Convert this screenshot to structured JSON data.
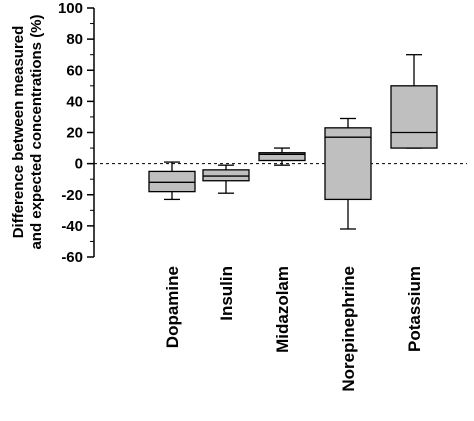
{
  "chart_data": {
    "type": "box",
    "ylabel_line1": "Difference between measured",
    "ylabel_line2": "and expected concentrations (%)",
    "xlabel": "",
    "title": "",
    "ylim": [
      -60,
      100
    ],
    "yticks": [
      100,
      80,
      60,
      40,
      20,
      0,
      -20,
      -40,
      -60
    ],
    "ytick_labels": [
      "100",
      "80",
      "60",
      "40",
      "20",
      "0",
      "-20",
      "-40",
      "-60"
    ],
    "reference_line": {
      "y": 0,
      "style": "dashed"
    },
    "categories": [
      "Dopamine",
      "Insulin",
      "Midazolam",
      "Norepinephrine",
      "Potassium"
    ],
    "boxes": [
      {
        "category": "Dopamine",
        "whisker_low": -23,
        "q1": -18,
        "median": -12,
        "q3": -5,
        "whisker_high": 1
      },
      {
        "category": "Insulin",
        "whisker_low": -19,
        "q1": -11,
        "median": -8,
        "q3": -4,
        "whisker_high": -1
      },
      {
        "category": "Midazolam",
        "whisker_low": -1,
        "q1": 2,
        "median": 6,
        "q3": 7,
        "whisker_high": 10
      },
      {
        "category": "Norepinephrine",
        "whisker_low": -42,
        "q1": -23,
        "median": 17,
        "q3": 23,
        "whisker_high": 29
      },
      {
        "category": "Potassium",
        "whisker_low": 10,
        "q1": 10,
        "median": 20,
        "q3": 50,
        "whisker_high": 70
      }
    ],
    "box_fill": "#bfbfbf",
    "grid": false,
    "legend": "none"
  }
}
